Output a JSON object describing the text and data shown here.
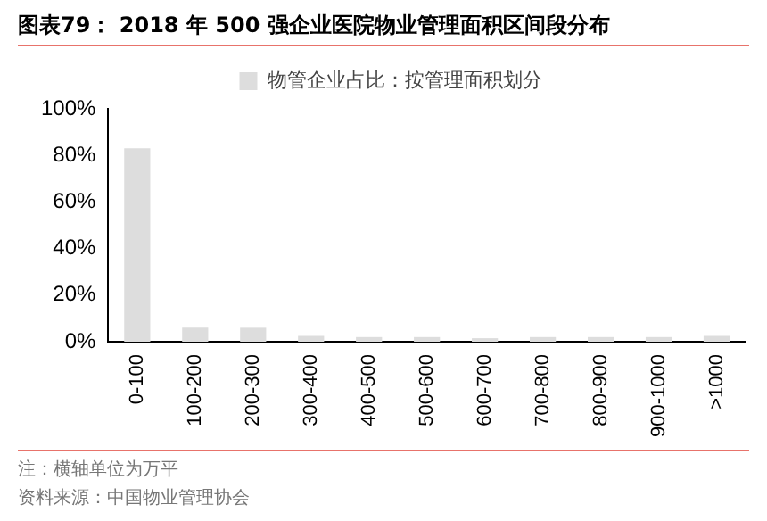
{
  "chart_data": {
    "type": "bar",
    "title": "图表79：  2018 年 500 强企业医院物业管理面积区间段分布",
    "categories": [
      "0-100",
      "100-200",
      "200-300",
      "300-400",
      "400-500",
      "500-600",
      "600-700",
      "700-800",
      "800-900",
      "900-1000",
      ">1000"
    ],
    "series": [
      {
        "name": "物管企业占比：按管理面积划分",
        "color": "#dddddd",
        "values": [
          83,
          6,
          6,
          2.5,
          2,
          2,
          1.5,
          2,
          2,
          2,
          2.5
        ]
      }
    ],
    "ylim": [
      0,
      100
    ],
    "yticks": [
      {
        "value": 0,
        "label": "0%"
      },
      {
        "value": 20,
        "label": "20%"
      },
      {
        "value": 40,
        "label": "40%"
      },
      {
        "value": 60,
        "label": "60%"
      },
      {
        "value": 80,
        "label": "80%"
      },
      {
        "value": 100,
        "label": "100%"
      }
    ],
    "grid": false,
    "legend": "top",
    "annotations": [
      "注：横轴单位为万平",
      "资料来源：中国物业管理协会"
    ]
  }
}
